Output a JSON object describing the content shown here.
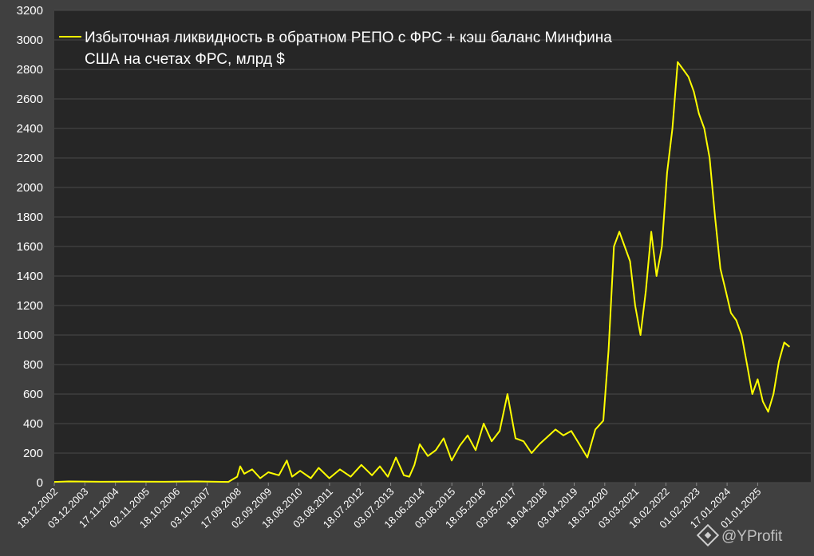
{
  "chart_data": {
    "type": "line",
    "title": "",
    "xlabel": "",
    "ylabel": "",
    "ylim": [
      0,
      3200
    ],
    "yticks": [
      0,
      200,
      400,
      600,
      800,
      1000,
      1200,
      1400,
      1600,
      1800,
      2000,
      2200,
      2400,
      2600,
      2800,
      3000,
      3200
    ],
    "xlim": [
      "2002-12-18",
      "2026-09-01"
    ],
    "xticks": [
      "18.12.2002",
      "03.12.2003",
      "17.11.2004",
      "02.11.2005",
      "18.10.2006",
      "03.10.2007",
      "17.09.2008",
      "02.09.2009",
      "18.08.2010",
      "03.08.2011",
      "18.07.2012",
      "03.07.2013",
      "18.06.2014",
      "03.06.2015",
      "18.05.2016",
      "03.05.2017",
      "18.04.2018",
      "03.04.2019",
      "18.03.2020",
      "03.03.2021",
      "16.02.2022",
      "01.02.2023",
      "17.01.2024",
      "01.01.2025"
    ],
    "grid": true,
    "legend": {
      "position": "top-left",
      "lines": [
        "Избыточная ликвидность в обратном РЕПО с ФРС + кэш баланс Минфина",
        "США на счетах ФРС, млрд $"
      ]
    },
    "series": [
      {
        "name": "Избыточная ликвидность в обратном РЕПО с ФРС + кэш баланс Минфина США на счетах ФРС, млрд $",
        "color": "#ffff00",
        "points": [
          [
            "2002-12-18",
            5
          ],
          [
            "2003-06-01",
            8
          ],
          [
            "2004-06-01",
            6
          ],
          [
            "2005-06-01",
            7
          ],
          [
            "2006-06-01",
            6
          ],
          [
            "2007-06-01",
            8
          ],
          [
            "2008-06-01",
            5
          ],
          [
            "2008-09-10",
            40
          ],
          [
            "2008-10-15",
            110
          ],
          [
            "2008-12-01",
            60
          ],
          [
            "2009-03-01",
            90
          ],
          [
            "2009-06-01",
            30
          ],
          [
            "2009-09-01",
            70
          ],
          [
            "2010-01-01",
            50
          ],
          [
            "2010-04-01",
            150
          ],
          [
            "2010-06-01",
            40
          ],
          [
            "2010-09-01",
            80
          ],
          [
            "2011-01-01",
            30
          ],
          [
            "2011-04-01",
            100
          ],
          [
            "2011-08-01",
            30
          ],
          [
            "2011-12-01",
            90
          ],
          [
            "2012-04-01",
            40
          ],
          [
            "2012-08-01",
            120
          ],
          [
            "2012-12-01",
            50
          ],
          [
            "2013-03-01",
            110
          ],
          [
            "2013-06-01",
            40
          ],
          [
            "2013-09-01",
            170
          ],
          [
            "2013-12-01",
            50
          ],
          [
            "2014-02-01",
            40
          ],
          [
            "2014-04-01",
            120
          ],
          [
            "2014-06-01",
            260
          ],
          [
            "2014-09-01",
            180
          ],
          [
            "2014-12-01",
            220
          ],
          [
            "2015-03-01",
            300
          ],
          [
            "2015-06-01",
            150
          ],
          [
            "2015-09-01",
            250
          ],
          [
            "2015-12-01",
            320
          ],
          [
            "2016-03-01",
            220
          ],
          [
            "2016-06-01",
            400
          ],
          [
            "2016-09-01",
            280
          ],
          [
            "2016-12-01",
            350
          ],
          [
            "2017-03-01",
            600
          ],
          [
            "2017-06-01",
            300
          ],
          [
            "2017-09-01",
            280
          ],
          [
            "2017-12-01",
            200
          ],
          [
            "2018-03-01",
            260
          ],
          [
            "2018-06-01",
            310
          ],
          [
            "2018-09-01",
            360
          ],
          [
            "2018-12-01",
            320
          ],
          [
            "2019-03-01",
            350
          ],
          [
            "2019-06-01",
            260
          ],
          [
            "2019-09-01",
            170
          ],
          [
            "2019-12-01",
            360
          ],
          [
            "2020-03-01",
            420
          ],
          [
            "2020-05-01",
            900
          ],
          [
            "2020-07-01",
            1600
          ],
          [
            "2020-09-01",
            1700
          ],
          [
            "2020-11-01",
            1600
          ],
          [
            "2021-01-01",
            1500
          ],
          [
            "2021-03-01",
            1200
          ],
          [
            "2021-05-01",
            1000
          ],
          [
            "2021-07-01",
            1300
          ],
          [
            "2021-09-01",
            1700
          ],
          [
            "2021-11-01",
            1400
          ],
          [
            "2022-01-01",
            1600
          ],
          [
            "2022-03-01",
            2100
          ],
          [
            "2022-05-01",
            2400
          ],
          [
            "2022-07-01",
            2850
          ],
          [
            "2022-09-01",
            2800
          ],
          [
            "2022-11-01",
            2750
          ],
          [
            "2023-01-01",
            2650
          ],
          [
            "2023-03-01",
            2500
          ],
          [
            "2023-05-01",
            2400
          ],
          [
            "2023-07-01",
            2200
          ],
          [
            "2023-09-01",
            1800
          ],
          [
            "2023-11-01",
            1450
          ],
          [
            "2024-01-01",
            1300
          ],
          [
            "2024-03-01",
            1150
          ],
          [
            "2024-05-01",
            1100
          ],
          [
            "2024-07-01",
            1000
          ],
          [
            "2024-09-01",
            800
          ],
          [
            "2024-11-01",
            600
          ],
          [
            "2025-01-01",
            700
          ],
          [
            "2025-03-01",
            550
          ],
          [
            "2025-05-01",
            480
          ],
          [
            "2025-07-01",
            600
          ],
          [
            "2025-09-01",
            820
          ],
          [
            "2025-11-01",
            950
          ],
          [
            "2026-01-01",
            920
          ]
        ]
      }
    ]
  },
  "watermark": "@YProfit"
}
